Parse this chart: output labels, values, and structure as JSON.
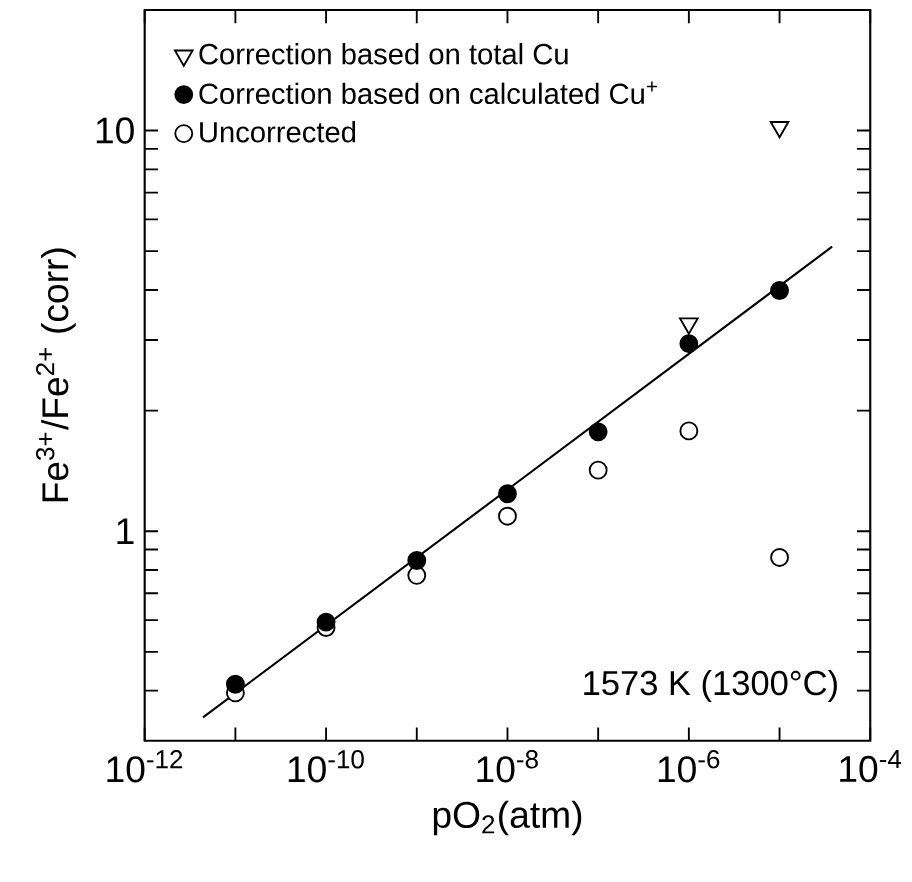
{
  "chart_data": {
    "type": "scatter",
    "xlabel": "pO$_{2}$(atm)",
    "ylabel": "Fe$^{3+}$/Fe$^{2+}$ (corr)",
    "log": "xy",
    "legend": "top left",
    "grid": false,
    "xlim": [
      1e-12,
      0.0001
    ],
    "ylim": [
      0.3,
      20
    ],
    "xticks": [
      {
        "value": 1e-12,
        "label": "10$^{-12}$"
      },
      {
        "value": 1e-11,
        "label": null
      },
      {
        "value": 1e-10,
        "label": "10$^{-10}$"
      },
      {
        "value": 1e-09,
        "label": null
      },
      {
        "value": 1e-08,
        "label": "10$^{-8}$"
      },
      {
        "value": 1e-07,
        "label": null
      },
      {
        "value": 1e-06,
        "label": "10$^{-6}$"
      },
      {
        "value": 1e-05,
        "label": null
      },
      {
        "value": 0.0001,
        "label": "10$^{-4}$"
      }
    ],
    "yticks": [
      {
        "value": 0.4,
        "label": null
      },
      {
        "value": 0.5,
        "label": null
      },
      {
        "value": 0.6,
        "label": null
      },
      {
        "value": 0.7,
        "label": null
      },
      {
        "value": 0.8,
        "label": null
      },
      {
        "value": 0.9,
        "label": null
      },
      1,
      {
        "value": 2,
        "label": null
      },
      {
        "value": 3,
        "label": null
      },
      {
        "value": 4,
        "label": null
      },
      {
        "value": 5,
        "label": null
      },
      {
        "value": 6,
        "label": null
      },
      {
        "value": 7,
        "label": null
      },
      {
        "value": 8,
        "label": null
      },
      {
        "value": 9,
        "label": null
      },
      10
    ],
    "x": [
      1e-11,
      1e-10,
      1e-09,
      1e-08,
      1e-07,
      1e-06,
      1e-05
    ],
    "series": [
      {
        "name": "Correction based on total Cu",
        "color": "#ffffff",
        "marker": "triangle",
        "values": [
          null,
          null,
          null,
          null,
          null,
          3.3,
          10.2
        ]
      },
      {
        "name": "Correction based on calculated Cu$^{+}$",
        "color": "#000000",
        "marker": "circle",
        "values": [
          0.415,
          0.593,
          0.845,
          1.24,
          1.77,
          2.94,
          3.99
        ]
      },
      {
        "name": "Uncorrected",
        "color": "#ffffff",
        "marker": "circle",
        "values": [
          0.395,
          0.575,
          0.776,
          1.09,
          1.42,
          1.78,
          0.86
        ]
      },
      {
        "type": "line",
        "color": "#000000",
        "marker": "none",
        "line_style": "solid",
        "x": [
          4.4e-12,
          3.8e-05
        ],
        "values": [
          0.343,
          5.13
        ]
      }
    ],
    "annotations": [
      "1573 K (1300°C)"
    ]
  }
}
